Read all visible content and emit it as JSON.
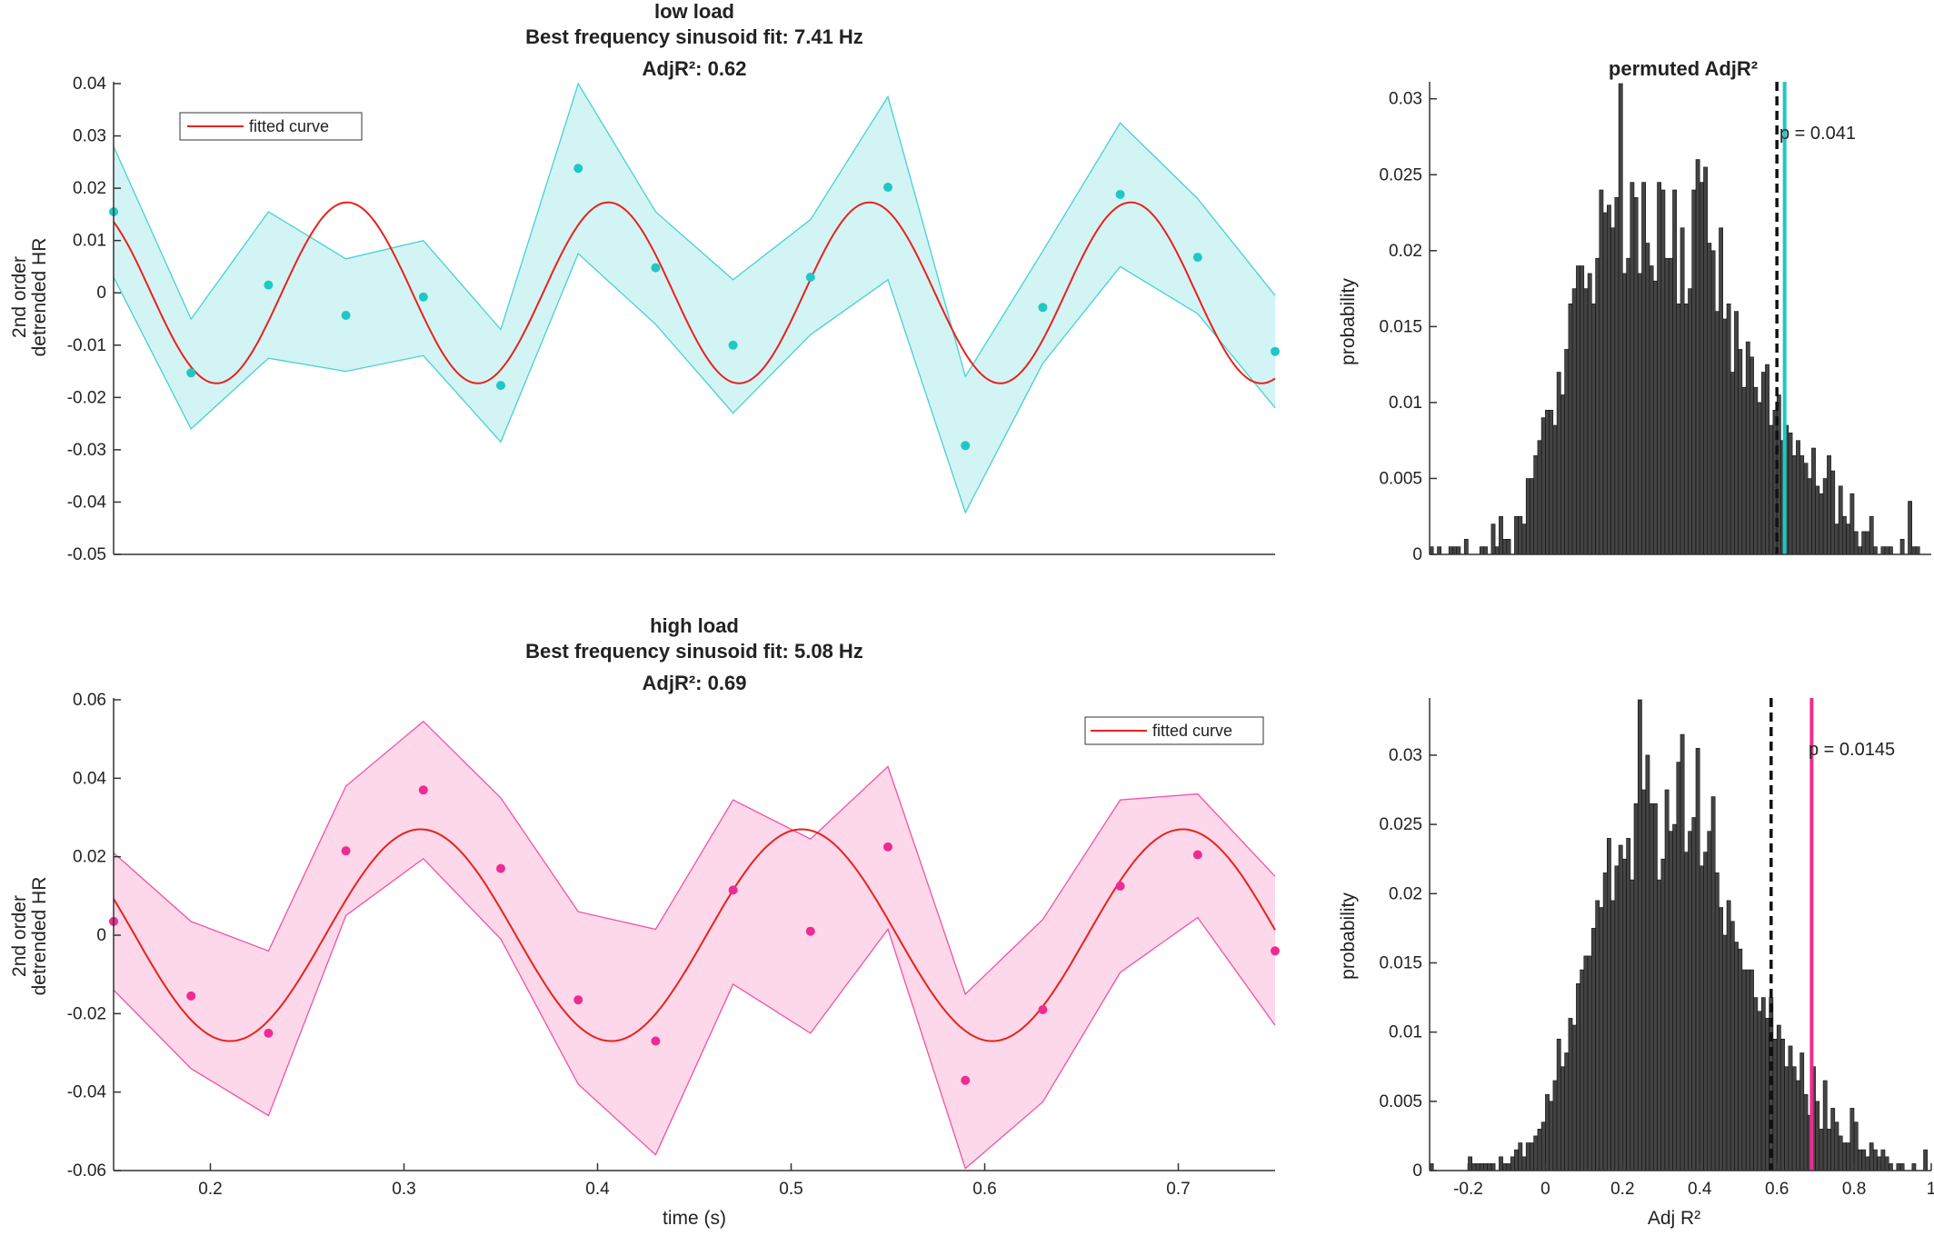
{
  "chart_data": [
    {
      "type": "line",
      "title_lines": [
        "low load",
        "Best frequency sinusoid fit: 7.41 Hz",
        "AdjR²: 0.62"
      ],
      "xlabel": "",
      "ylabel_lines": [
        "2nd order",
        "detrended HR"
      ],
      "xlim": [
        0.15,
        0.75
      ],
      "ylim": [
        -0.05,
        0.04
      ],
      "xticks": [],
      "yticks": [
        0.04,
        0.03,
        0.02,
        0.01,
        0,
        -0.01,
        -0.02,
        -0.03,
        -0.04,
        -0.05
      ],
      "ytick_labels": [
        "0.04",
        "0.03",
        "0.02",
        "0.01",
        "0",
        "-0.01",
        "-0.02",
        "-0.03",
        "-0.04",
        "-0.05"
      ],
      "legend": {
        "label": "fitted curve",
        "position": "top-left"
      },
      "color": "#1fc7c7",
      "band_color": "#d3f4f4",
      "fit_color": "#e8221e",
      "x": [
        0.15,
        0.19,
        0.23,
        0.27,
        0.31,
        0.35,
        0.39,
        0.43,
        0.47,
        0.51,
        0.55,
        0.59,
        0.63,
        0.67,
        0.71,
        0.75
      ],
      "y": [
        0.0155,
        -0.0153,
        0.0015,
        -0.0043,
        -0.0008,
        -0.0177,
        0.0238,
        0.0048,
        -0.01,
        0.003,
        0.0202,
        -0.0292,
        -0.0028,
        0.0188,
        0.0068,
        -0.0112
      ],
      "upper": [
        0.028,
        -0.005,
        0.0155,
        0.0065,
        0.01,
        -0.007,
        0.04,
        0.0155,
        0.0025,
        0.014,
        0.0375,
        -0.016,
        0.008,
        0.0325,
        0.018,
        -0.0005
      ],
      "lower": [
        0.003,
        -0.026,
        -0.0125,
        -0.015,
        -0.012,
        -0.0285,
        0.0075,
        -0.006,
        -0.023,
        -0.008,
        0.0025,
        -0.042,
        -0.0135,
        0.005,
        -0.004,
        -0.022
      ],
      "fit": {
        "label": "fitted curve",
        "frequency_hz": 7.41,
        "amplitude": 0.0173,
        "peak_x": 0.2706
      }
    },
    {
      "type": "bar",
      "title": "permuted AdjR²",
      "xlabel": "",
      "ylabel": "probability",
      "xlim": [
        -0.3,
        1.0
      ],
      "ylim": [
        0,
        0.031
      ],
      "xticks": [],
      "yticks": [
        0,
        0.005,
        0.01,
        0.015,
        0.02,
        0.025,
        0.03
      ],
      "ytick_labels": [
        "0",
        "0.005",
        "0.01",
        "0.015",
        "0.02",
        "0.025",
        "0.03"
      ],
      "bin_start": -0.3,
      "bin_width": 0.01,
      "values": [
        0.0005,
        0,
        0.0005,
        0,
        0,
        0.0005,
        0.0005,
        0.0005,
        0,
        0.001,
        0,
        0,
        0,
        0.0005,
        0.0005,
        0,
        0.002,
        0.0005,
        0.0025,
        0.001,
        0.001,
        0,
        0.0025,
        0.0025,
        0.002,
        0.005,
        0.005,
        0.0065,
        0.0075,
        0.009,
        0.0095,
        0.0095,
        0.0085,
        0.012,
        0.0105,
        0.0135,
        0.0165,
        0.0175,
        0.019,
        0.019,
        0.0175,
        0.0185,
        0.0165,
        0.0195,
        0.024,
        0.0225,
        0.023,
        0.0215,
        0.0235,
        0.031,
        0.0185,
        0.0195,
        0.0245,
        0.0235,
        0.0185,
        0.0245,
        0.0205,
        0.019,
        0.018,
        0.0245,
        0.024,
        0.0195,
        0.0195,
        0.024,
        0.0165,
        0.0215,
        0.0165,
        0.0175,
        0.024,
        0.026,
        0.0245,
        0.0255,
        0.0205,
        0.02,
        0.016,
        0.0215,
        0.0155,
        0.0165,
        0.012,
        0.016,
        0.0135,
        0.011,
        0.014,
        0.013,
        0.011,
        0.01,
        0.012,
        0.0125,
        0.0085,
        0.0095,
        0.0105,
        0.0075,
        0.0085,
        0.008,
        0.0065,
        0.0075,
        0.0065,
        0.006,
        0.005,
        0.007,
        0.0045,
        0.004,
        0.005,
        0.0065,
        0.0055,
        0.002,
        0.0045,
        0.0025,
        0.002,
        0.004,
        0.0015,
        0.0005,
        0.0015,
        0.0015,
        0.0025,
        0.0005,
        0,
        0.0005,
        0.0005,
        0.0005,
        0,
        0,
        0.001,
        0,
        0.0035,
        0.0005,
        0.0005,
        0,
        0,
        0,
        0,
        0,
        0
      ],
      "bar_color": "#444444",
      "threshold_x": 0.6,
      "observed_x": 0.62,
      "observed_color": "#1fc7c7",
      "p_label": "p = 0.041"
    },
    {
      "type": "line",
      "title_lines": [
        "high load",
        "Best frequency sinusoid fit: 5.08 Hz",
        "AdjR²: 0.69"
      ],
      "xlabel": "time (s)",
      "ylabel_lines": [
        "2nd order",
        "detrended HR"
      ],
      "xlim": [
        0.15,
        0.75
      ],
      "ylim": [
        -0.06,
        0.06
      ],
      "xticks": [
        0.2,
        0.3,
        0.4,
        0.5,
        0.6,
        0.7
      ],
      "xtick_labels": [
        "0.2",
        "0.3",
        "0.4",
        "0.5",
        "0.6",
        "0.7"
      ],
      "yticks": [
        0.06,
        0.04,
        0.02,
        0,
        -0.02,
        -0.04,
        -0.06
      ],
      "ytick_labels": [
        "0.06",
        "0.04",
        "0.02",
        "0",
        "-0.02",
        "-0.04",
        "-0.06"
      ],
      "legend": {
        "label": "fitted curve",
        "position": "top-right"
      },
      "color": "#ef2b92",
      "band_color": "#fcd8ea",
      "fit_color": "#e8221e",
      "x": [
        0.15,
        0.19,
        0.23,
        0.27,
        0.31,
        0.35,
        0.39,
        0.43,
        0.47,
        0.51,
        0.55,
        0.59,
        0.63,
        0.67,
        0.71,
        0.75
      ],
      "y": [
        0.0035,
        -0.0155,
        -0.025,
        0.0215,
        0.037,
        0.017,
        -0.0165,
        -0.027,
        0.0115,
        0.001,
        0.0225,
        -0.037,
        -0.019,
        0.0125,
        0.0205,
        -0.004
      ],
      "upper": [
        0.021,
        0.0035,
        -0.004,
        0.038,
        0.0545,
        0.035,
        0.006,
        0.0015,
        0.0345,
        0.0245,
        0.043,
        -0.015,
        0.004,
        0.0345,
        0.036,
        0.015
      ],
      "lower": [
        -0.014,
        -0.034,
        -0.046,
        0.005,
        0.0195,
        -0.001,
        -0.038,
        -0.056,
        -0.0125,
        -0.025,
        0.0015,
        -0.0595,
        -0.0425,
        -0.0095,
        0.0045,
        -0.023
      ],
      "fit": {
        "label": "fitted curve",
        "frequency_hz": 5.08,
        "amplitude": 0.027,
        "peak_x": 0.3086
      }
    },
    {
      "type": "bar",
      "title": "",
      "xlabel": "Adj R²",
      "ylabel": "probability",
      "xlim": [
        -0.3,
        1.0
      ],
      "ylim": [
        0,
        0.034
      ],
      "xticks": [
        -0.2,
        0,
        0.2,
        0.4,
        0.6,
        0.8,
        1
      ],
      "xtick_labels": [
        "-0.2",
        "0",
        "0.2",
        "0.4",
        "0.6",
        "0.8",
        "1"
      ],
      "yticks": [
        0,
        0.005,
        0.01,
        0.015,
        0.02,
        0.025,
        0.03
      ],
      "ytick_labels": [
        "0",
        "0.005",
        "0.01",
        "0.015",
        "0.02",
        "0.025",
        "0.03"
      ],
      "bin_start": -0.3,
      "bin_width": 0.01,
      "values": [
        0.0005,
        0,
        0,
        0,
        0,
        0,
        0,
        0,
        0,
        0,
        0.001,
        0.0005,
        0.0005,
        0.0005,
        0.0005,
        0.0005,
        0.0005,
        0,
        0.001,
        0.0005,
        0.0005,
        0.001,
        0.0015,
        0.002,
        0.001,
        0.002,
        0.002,
        0.0025,
        0.003,
        0.0035,
        0.0055,
        0.005,
        0.0065,
        0.0095,
        0.0075,
        0.0085,
        0.011,
        0.0105,
        0.0135,
        0.0145,
        0.0155,
        0.0155,
        0.0175,
        0.0195,
        0.019,
        0.0215,
        0.024,
        0.0195,
        0.022,
        0.0235,
        0.0225,
        0.024,
        0.021,
        0.0265,
        0.034,
        0.0275,
        0.03,
        0.0265,
        0.0265,
        0.021,
        0.0225,
        0.0275,
        0.0245,
        0.025,
        0.0295,
        0.0315,
        0.023,
        0.0245,
        0.0255,
        0.0305,
        0.022,
        0.023,
        0.0245,
        0.027,
        0.0215,
        0.019,
        0.017,
        0.0195,
        0.018,
        0.0165,
        0.016,
        0.0145,
        0.0145,
        0.0145,
        0.0125,
        0.0115,
        0.0125,
        0.011,
        0.0125,
        0.0095,
        0.0105,
        0.0095,
        0.0075,
        0.009,
        0.0075,
        0.0065,
        0.0085,
        0.0055,
        0.004,
        0.0075,
        0.005,
        0.003,
        0.0065,
        0.003,
        0.0045,
        0.0035,
        0.0025,
        0.002,
        0.002,
        0.0045,
        0.0035,
        0.0015,
        0.0015,
        0.001,
        0.002,
        0.0015,
        0.001,
        0.0015,
        0.001,
        0.0005,
        0,
        0.0005,
        0.0005,
        0,
        0,
        0.0005,
        0,
        0,
        0.0015,
        0,
        0,
        0,
        0
      ],
      "bar_color": "#444444",
      "threshold_x": 0.585,
      "observed_x": 0.69,
      "observed_color": "#ef2b92",
      "p_label": "p = 0.0145"
    }
  ]
}
